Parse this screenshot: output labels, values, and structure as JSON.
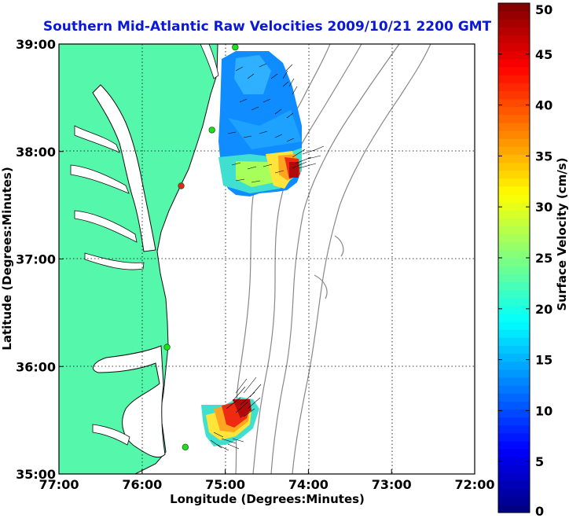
{
  "title": "Southern Mid-Atlantic Raw Velocities 2009/10/21 2200 GMT",
  "map": {
    "x_axis_label": "Longitude (Degrees:Minutes)",
    "y_axis_label": "Latitude (Degrees:Minutes)",
    "lon_range": [
      -77,
      -72
    ],
    "lat_range": [
      35,
      39
    ],
    "x_ticks": [
      {
        "value": -77,
        "label": "77:00"
      },
      {
        "value": -76,
        "label": "76:00"
      },
      {
        "value": -75,
        "label": "75:00"
      },
      {
        "value": -74,
        "label": "74:00"
      },
      {
        "value": -73,
        "label": "73:00"
      },
      {
        "value": -72,
        "label": "72:00"
      }
    ],
    "y_ticks": [
      {
        "value": 35,
        "label": "35:00"
      },
      {
        "value": 36,
        "label": "36:00"
      },
      {
        "value": 37,
        "label": "37:00"
      },
      {
        "value": 38,
        "label": "38:00"
      },
      {
        "value": 39,
        "label": "39:00"
      }
    ],
    "land_color": "#55f7aa",
    "water_color": "#ffffff",
    "bathymetry_color": "#888888",
    "gridlines": "dotted"
  },
  "colorbar": {
    "label": "Surface Velocity (cm/s)",
    "range": [
      0,
      50
    ],
    "ticks": [
      "0",
      "5",
      "10",
      "15",
      "20",
      "25",
      "30",
      "35",
      "40",
      "45",
      "50"
    ],
    "colormap": "jet"
  },
  "stations": [
    {
      "lon": -74.88,
      "lat": 38.97,
      "color": "#22dd22"
    },
    {
      "lon": -75.16,
      "lat": 38.2,
      "color": "#22dd22"
    },
    {
      "lon": -75.53,
      "lat": 37.68,
      "color": "#ee2222"
    },
    {
      "lon": -75.7,
      "lat": 36.18,
      "color": "#22dd22"
    },
    {
      "lon": -75.48,
      "lat": 35.25,
      "color": "#22dd22"
    }
  ]
}
